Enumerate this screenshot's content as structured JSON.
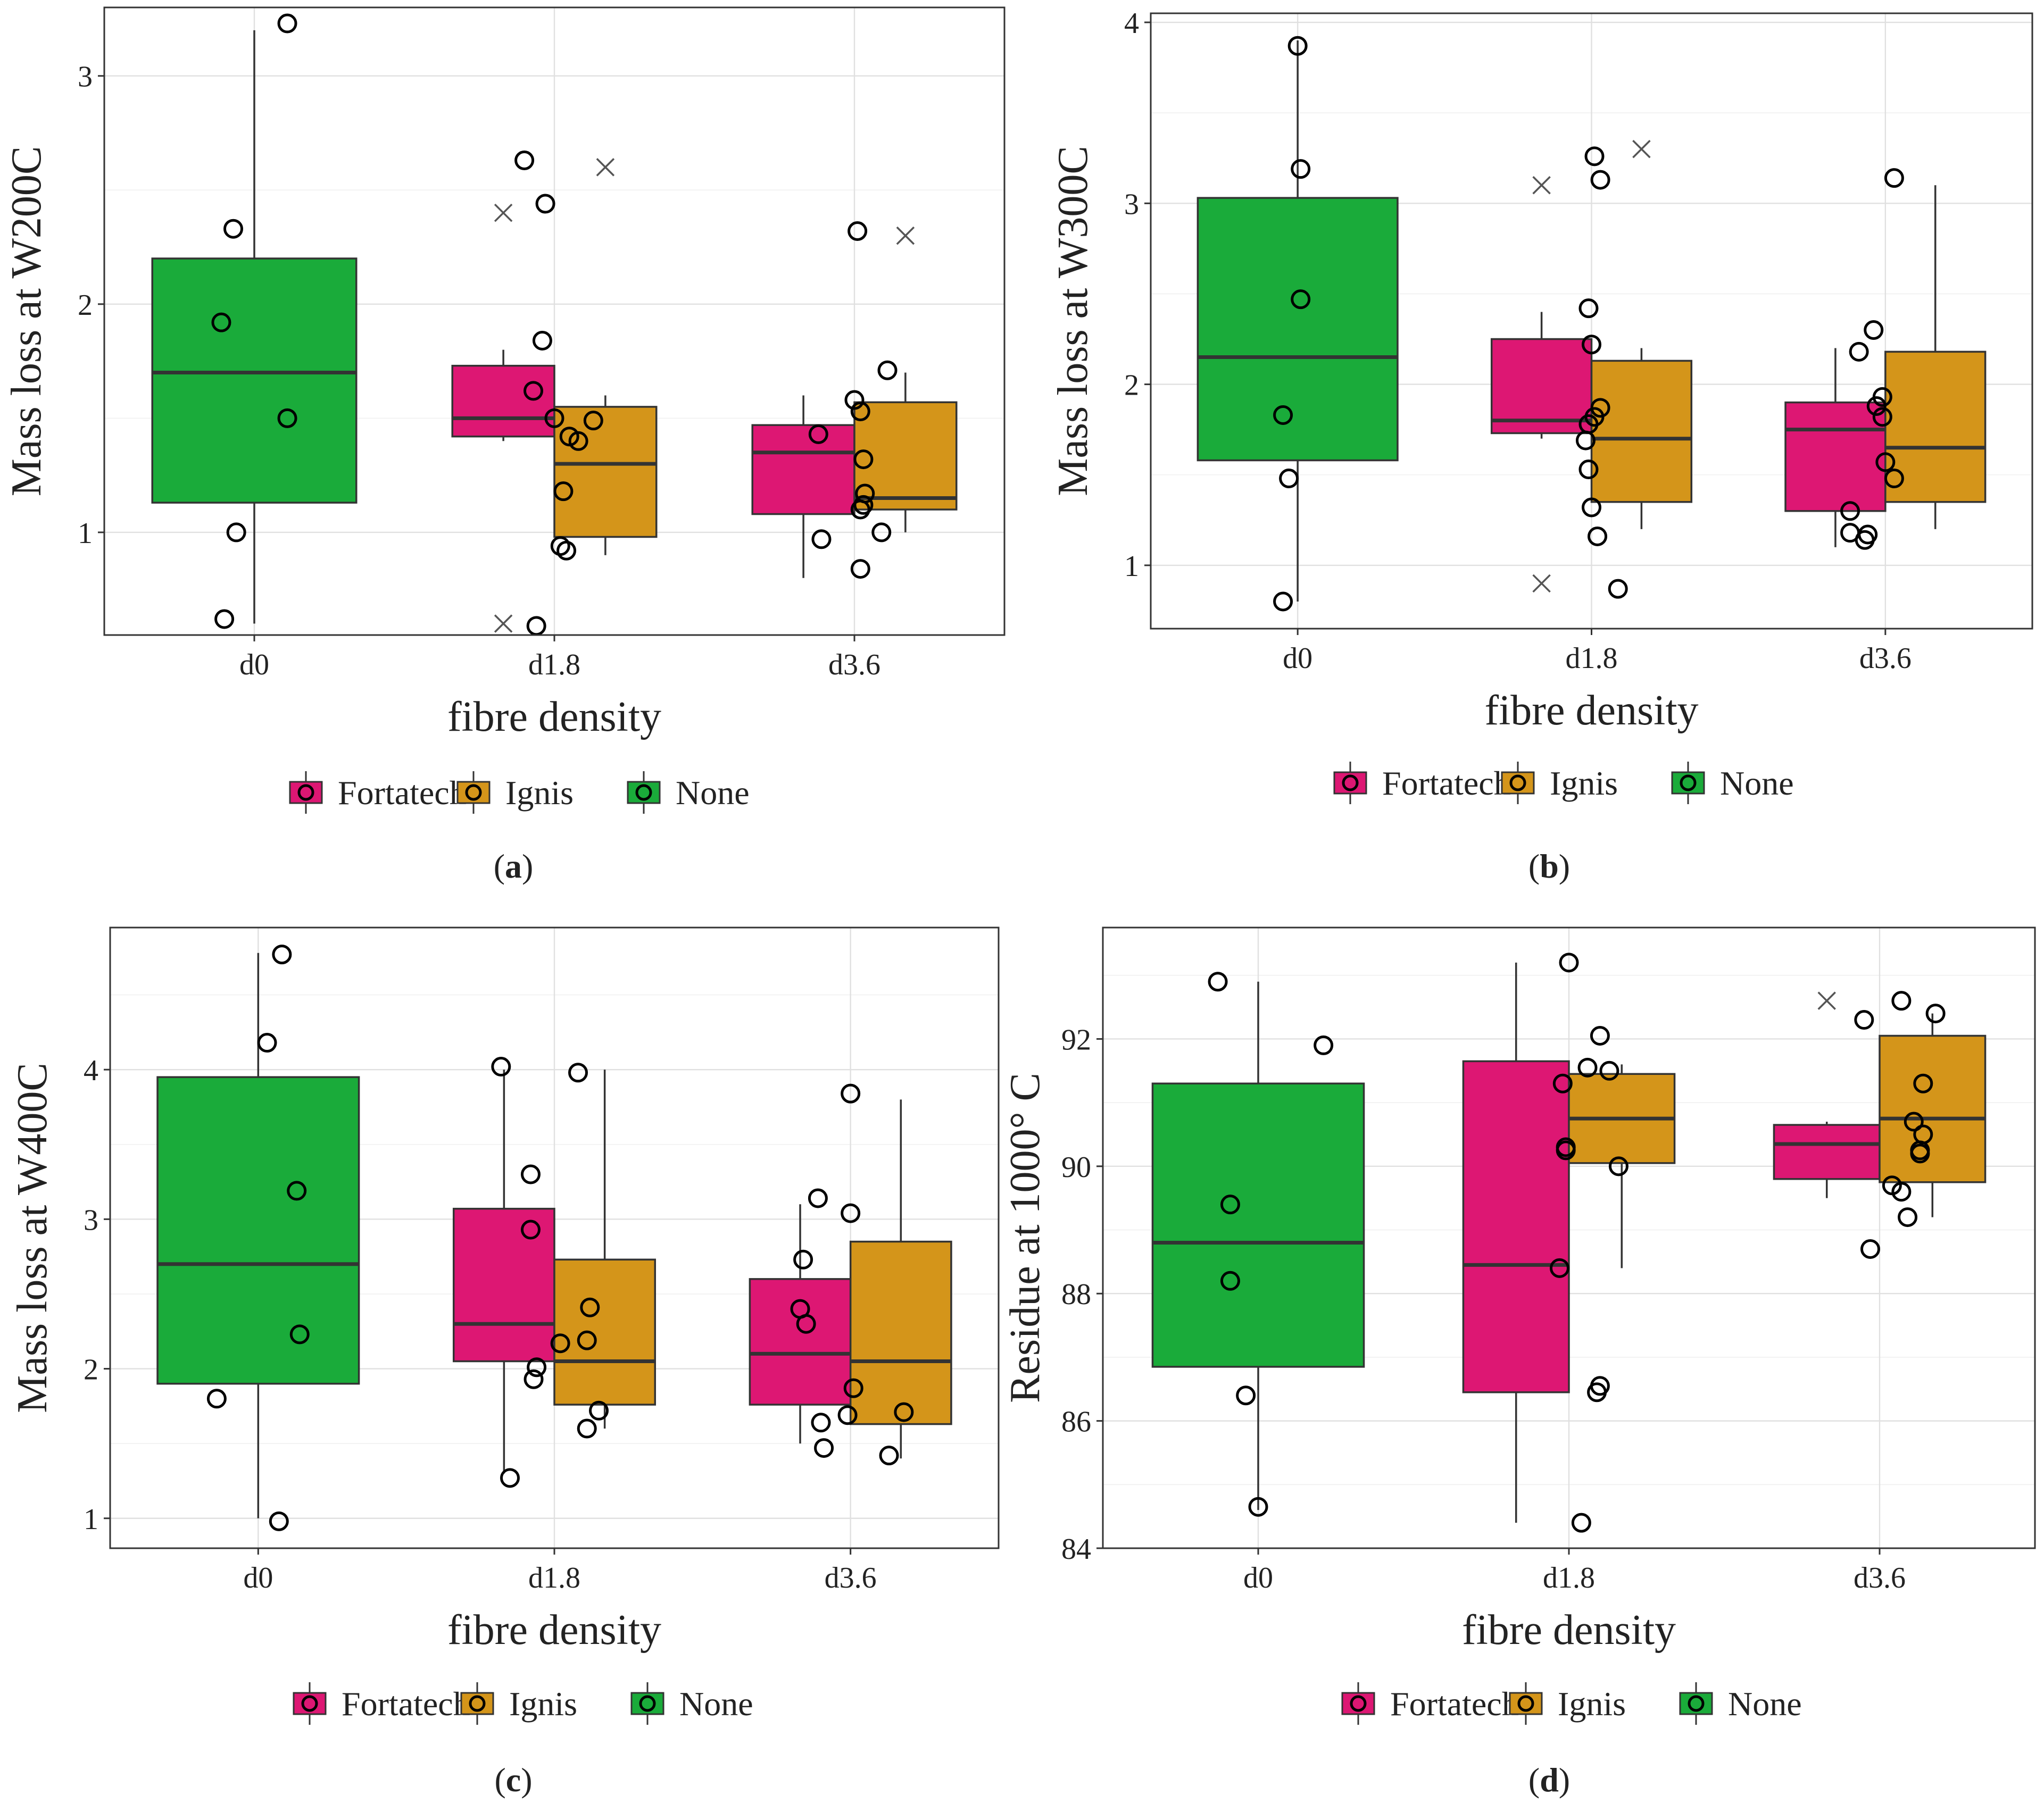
{
  "colors": {
    "Fortatech": "#dd1773",
    "Ignis": "#d4951a",
    "None": "#1aab3a"
  },
  "legend": [
    "Fortatech",
    "Ignis",
    "None"
  ],
  "chart_data": [
    {
      "type": "box",
      "panel": "(a)",
      "panel_letter": "a",
      "ylabel": "Mass loss at W200C",
      "xlabel": "fibre density",
      "categories": [
        "d0",
        "d1.8",
        "d3.6"
      ],
      "ylim": [
        0.55,
        3.3
      ],
      "yticks": [
        1,
        2,
        3
      ],
      "yticks_label": [
        "1",
        "2",
        "3"
      ],
      "boxes": [
        {
          "category": "d0",
          "group": "None",
          "pos": 0,
          "q1": 1.13,
          "median": 1.7,
          "q3": 2.2,
          "low": 0.6,
          "high": 3.2
        },
        {
          "category": "d1.8",
          "group": "Fortatech",
          "pos": -1,
          "q1": 1.42,
          "median": 1.5,
          "q3": 1.73,
          "low": 1.4,
          "high": 1.8
        },
        {
          "category": "d1.8",
          "group": "Ignis",
          "pos": 1,
          "q1": 0.98,
          "median": 1.3,
          "q3": 1.55,
          "low": 0.9,
          "high": 1.6
        },
        {
          "category": "d3.6",
          "group": "Fortatech",
          "pos": -1,
          "q1": 1.08,
          "median": 1.35,
          "q3": 1.47,
          "low": 0.8,
          "high": 1.6
        },
        {
          "category": "d3.6",
          "group": "Ignis",
          "pos": 1,
          "q1": 1.1,
          "median": 1.15,
          "q3": 1.57,
          "low": 1.0,
          "high": 1.7
        }
      ],
      "points": [
        {
          "category": "d0",
          "offset": -0.1,
          "y": 0.62
        },
        {
          "category": "d0",
          "offset": -0.11,
          "y": 1.92
        },
        {
          "category": "d0",
          "offset": -0.07,
          "y": 2.33
        },
        {
          "category": "d0",
          "offset": -0.06,
          "y": 1.0
        },
        {
          "category": "d0",
          "offset": 0.11,
          "y": 1.5
        },
        {
          "category": "d0",
          "offset": 0.11,
          "y": 3.23
        },
        {
          "category": "d1.8",
          "offset": -0.1,
          "y": 2.63
        },
        {
          "category": "d1.8",
          "offset": -0.07,
          "y": 1.62
        },
        {
          "category": "d1.8",
          "offset": -0.04,
          "y": 1.84
        },
        {
          "category": "d1.8",
          "offset": -0.03,
          "y": 2.44
        },
        {
          "category": "d1.8",
          "offset": 0.0,
          "y": 1.5
        },
        {
          "category": "d1.8",
          "offset": 0.02,
          "y": 0.94
        },
        {
          "category": "d1.8",
          "offset": 0.03,
          "y": 1.18
        },
        {
          "category": "d1.8",
          "offset": 0.04,
          "y": 0.92
        },
        {
          "category": "d1.8",
          "offset": 0.05,
          "y": 1.42
        },
        {
          "category": "d1.8",
          "offset": 0.08,
          "y": 1.4
        },
        {
          "category": "d1.8",
          "offset": 0.13,
          "y": 1.49
        },
        {
          "category": "d1.8",
          "offset": -0.06,
          "y": 0.59
        },
        {
          "category": "d3.6",
          "offset": -0.12,
          "y": 1.43
        },
        {
          "category": "d3.6",
          "offset": -0.11,
          "y": 0.97
        },
        {
          "category": "d3.6",
          "offset": 0.0,
          "y": 1.58
        },
        {
          "category": "d3.6",
          "offset": 0.01,
          "y": 2.32
        },
        {
          "category": "d3.6",
          "offset": 0.02,
          "y": 1.53
        },
        {
          "category": "d3.6",
          "offset": 0.02,
          "y": 0.84
        },
        {
          "category": "d3.6",
          "offset": 0.02,
          "y": 1.1
        },
        {
          "category": "d3.6",
          "offset": 0.03,
          "y": 1.32
        },
        {
          "category": "d3.6",
          "offset": 0.035,
          "y": 1.17
        },
        {
          "category": "d3.6",
          "offset": 0.03,
          "y": 1.12
        },
        {
          "category": "d3.6",
          "offset": 0.09,
          "y": 1.0
        },
        {
          "category": "d3.6",
          "offset": 0.11,
          "y": 1.71
        }
      ],
      "outliers": [
        {
          "category": "d1.8",
          "pos": -1,
          "y": 2.4
        },
        {
          "category": "d1.8",
          "pos": -1,
          "y": 0.6
        },
        {
          "category": "d1.8",
          "pos": 1,
          "y": 2.6
        },
        {
          "category": "d3.6",
          "pos": 1,
          "y": 2.3
        }
      ]
    },
    {
      "type": "box",
      "panel": "(b)",
      "panel_letter": "b",
      "ylabel": "Mass loss at W300C",
      "xlabel": "fibre density",
      "categories": [
        "d0",
        "d1.8",
        "d3.6"
      ],
      "ylim": [
        0.65,
        4.05
      ],
      "yticks": [
        1,
        2,
        3,
        4
      ],
      "yticks_label": [
        "1",
        "2",
        "3",
        "4"
      ],
      "boxes": [
        {
          "category": "d0",
          "group": "None",
          "pos": 0,
          "q1": 1.58,
          "median": 2.15,
          "q3": 3.03,
          "low": 0.8,
          "high": 3.9
        },
        {
          "category": "d1.8",
          "group": "Fortatech",
          "pos": -1,
          "q1": 1.73,
          "median": 1.8,
          "q3": 2.25,
          "low": 1.7,
          "high": 2.4
        },
        {
          "category": "d1.8",
          "group": "Ignis",
          "pos": 1,
          "q1": 1.35,
          "median": 1.7,
          "q3": 2.13,
          "low": 1.2,
          "high": 2.2
        },
        {
          "category": "d3.6",
          "group": "Fortatech",
          "pos": -1,
          "q1": 1.3,
          "median": 1.75,
          "q3": 1.9,
          "low": 1.1,
          "high": 2.2
        },
        {
          "category": "d3.6",
          "group": "Ignis",
          "pos": 1,
          "q1": 1.35,
          "median": 1.65,
          "q3": 2.18,
          "low": 1.2,
          "high": 3.1
        }
      ],
      "points": [
        {
          "category": "d0",
          "offset": -0.05,
          "y": 0.8
        },
        {
          "category": "d0",
          "offset": -0.05,
          "y": 1.83
        },
        {
          "category": "d0",
          "offset": -0.03,
          "y": 1.48
        },
        {
          "category": "d0",
          "offset": 0.0,
          "y": 3.87
        },
        {
          "category": "d0",
          "offset": 0.01,
          "y": 3.19
        },
        {
          "category": "d0",
          "offset": 0.01,
          "y": 2.47
        },
        {
          "category": "d1.8",
          "offset": -0.02,
          "y": 1.69
        },
        {
          "category": "d1.8",
          "offset": -0.01,
          "y": 1.78
        },
        {
          "category": "d1.8",
          "offset": -0.01,
          "y": 1.53
        },
        {
          "category": "d1.8",
          "offset": -0.01,
          "y": 2.42
        },
        {
          "category": "d1.8",
          "offset": 0.0,
          "y": 2.22
        },
        {
          "category": "d1.8",
          "offset": 0.0,
          "y": 1.32
        },
        {
          "category": "d1.8",
          "offset": 0.01,
          "y": 1.82
        },
        {
          "category": "d1.8",
          "offset": 0.01,
          "y": 3.26
        },
        {
          "category": "d1.8",
          "offset": 0.02,
          "y": 1.16
        },
        {
          "category": "d1.8",
          "offset": 0.03,
          "y": 1.87
        },
        {
          "category": "d1.8",
          "offset": 0.03,
          "y": 3.13
        },
        {
          "category": "d1.8",
          "offset": 0.09,
          "y": 0.87
        },
        {
          "category": "d3.6",
          "offset": -0.12,
          "y": 1.3
        },
        {
          "category": "d3.6",
          "offset": -0.12,
          "y": 1.18
        },
        {
          "category": "d3.6",
          "offset": -0.09,
          "y": 2.18
        },
        {
          "category": "d3.6",
          "offset": -0.07,
          "y": 1.14
        },
        {
          "category": "d3.6",
          "offset": -0.06,
          "y": 1.17
        },
        {
          "category": "d3.6",
          "offset": -0.04,
          "y": 2.3
        },
        {
          "category": "d3.6",
          "offset": -0.03,
          "y": 1.88
        },
        {
          "category": "d3.6",
          "offset": -0.01,
          "y": 1.93
        },
        {
          "category": "d3.6",
          "offset": -0.01,
          "y": 1.82
        },
        {
          "category": "d3.6",
          "offset": 0.0,
          "y": 1.57
        },
        {
          "category": "d3.6",
          "offset": 0.03,
          "y": 1.48
        },
        {
          "category": "d3.6",
          "offset": 0.03,
          "y": 3.14
        }
      ],
      "outliers": [
        {
          "category": "d1.8",
          "pos": -1,
          "y": 3.1
        },
        {
          "category": "d1.8",
          "pos": -1,
          "y": 0.9
        },
        {
          "category": "d1.8",
          "pos": 1,
          "y": 3.3
        }
      ]
    },
    {
      "type": "box",
      "panel": "(c)",
      "panel_letter": "c",
      "ylabel": "Mass loss at W400C",
      "xlabel": "fibre density",
      "categories": [
        "d0",
        "d1.8",
        "d3.6"
      ],
      "ylim": [
        0.8,
        4.95
      ],
      "yticks": [
        1,
        2,
        3,
        4
      ],
      "yticks_label": [
        "1",
        "2",
        "3",
        "4"
      ],
      "boxes": [
        {
          "category": "d0",
          "group": "None",
          "pos": 0,
          "q1": 1.9,
          "median": 2.7,
          "q3": 3.95,
          "low": 1.0,
          "high": 4.78
        },
        {
          "category": "d1.8",
          "group": "Fortatech",
          "pos": -1,
          "q1": 2.05,
          "median": 2.3,
          "q3": 3.07,
          "low": 1.3,
          "high": 4.0
        },
        {
          "category": "d1.8",
          "group": "Ignis",
          "pos": 1,
          "q1": 1.76,
          "median": 2.05,
          "q3": 2.73,
          "low": 1.6,
          "high": 4.0
        },
        {
          "category": "d3.6",
          "group": "Fortatech",
          "pos": -1,
          "q1": 1.76,
          "median": 2.1,
          "q3": 2.6,
          "low": 1.5,
          "high": 3.1
        },
        {
          "category": "d3.6",
          "group": "Ignis",
          "pos": 1,
          "q1": 1.63,
          "median": 2.05,
          "q3": 2.85,
          "low": 1.4,
          "high": 3.8
        }
      ],
      "points": [
        {
          "category": "d0",
          "offset": -0.14,
          "y": 1.8
        },
        {
          "category": "d0",
          "offset": 0.03,
          "y": 4.18
        },
        {
          "category": "d0",
          "offset": 0.07,
          "y": 0.98
        },
        {
          "category": "d0",
          "offset": 0.08,
          "y": 4.77
        },
        {
          "category": "d0",
          "offset": 0.13,
          "y": 3.19
        },
        {
          "category": "d0",
          "offset": 0.14,
          "y": 2.23
        },
        {
          "category": "d1.8",
          "offset": -0.15,
          "y": 1.27
        },
        {
          "category": "d1.8",
          "offset": -0.18,
          "y": 4.02
        },
        {
          "category": "d1.8",
          "offset": -0.08,
          "y": 3.3
        },
        {
          "category": "d1.8",
          "offset": -0.08,
          "y": 2.93
        },
        {
          "category": "d1.8",
          "offset": -0.07,
          "y": 1.93
        },
        {
          "category": "d1.8",
          "offset": -0.06,
          "y": 2.01
        },
        {
          "category": "d1.8",
          "offset": 0.02,
          "y": 2.17
        },
        {
          "category": "d1.8",
          "offset": 0.08,
          "y": 3.98
        },
        {
          "category": "d1.8",
          "offset": 0.11,
          "y": 1.6
        },
        {
          "category": "d1.8",
          "offset": 0.11,
          "y": 2.19
        },
        {
          "category": "d1.8",
          "offset": 0.12,
          "y": 2.41
        },
        {
          "category": "d1.8",
          "offset": 0.15,
          "y": 1.72
        },
        {
          "category": "d3.6",
          "offset": -0.17,
          "y": 2.4
        },
        {
          "category": "d3.6",
          "offset": -0.16,
          "y": 2.73
        },
        {
          "category": "d3.6",
          "offset": -0.15,
          "y": 2.3
        },
        {
          "category": "d3.6",
          "offset": -0.11,
          "y": 3.14
        },
        {
          "category": "d3.6",
          "offset": -0.1,
          "y": 1.64
        },
        {
          "category": "d3.6",
          "offset": -0.09,
          "y": 1.47
        },
        {
          "category": "d3.6",
          "offset": -0.01,
          "y": 1.69
        },
        {
          "category": "d3.6",
          "offset": 0.0,
          "y": 3.04
        },
        {
          "category": "d3.6",
          "offset": 0.0,
          "y": 3.84
        },
        {
          "category": "d3.6",
          "offset": 0.01,
          "y": 1.87
        },
        {
          "category": "d3.6",
          "offset": 0.13,
          "y": 1.42
        },
        {
          "category": "d3.6",
          "offset": 0.18,
          "y": 1.71
        }
      ],
      "outliers": []
    },
    {
      "type": "box",
      "panel": "(d)",
      "panel_letter": "d",
      "ylabel": "Residue  at  1000° C",
      "xlabel": "fibre density",
      "categories": [
        "d0",
        "d1.8",
        "d3.6"
      ],
      "ylim": [
        84,
        93.75
      ],
      "yticks": [
        84,
        86,
        88,
        90,
        92
      ],
      "yticks_label": [
        "84",
        "86",
        "88",
        "90",
        "92"
      ],
      "boxes": [
        {
          "category": "d0",
          "group": "None",
          "pos": 0,
          "q1": 86.85,
          "median": 88.8,
          "q3": 91.3,
          "low": 84.6,
          "high": 92.9
        },
        {
          "category": "d1.8",
          "group": "Fortatech",
          "pos": -1,
          "q1": 86.45,
          "median": 88.45,
          "q3": 91.65,
          "low": 84.4,
          "high": 93.2
        },
        {
          "category": "d1.8",
          "group": "Ignis",
          "pos": 1,
          "q1": 90.05,
          "median": 90.75,
          "q3": 91.45,
          "low": 88.4,
          "high": 91.6
        },
        {
          "category": "d3.6",
          "group": "Fortatech",
          "pos": -1,
          "q1": 89.8,
          "median": 90.35,
          "q3": 90.65,
          "low": 89.5,
          "high": 90.7
        },
        {
          "category": "d3.6",
          "group": "Ignis",
          "pos": 1,
          "q1": 89.75,
          "median": 90.75,
          "q3": 92.05,
          "low": 89.2,
          "high": 92.4
        }
      ],
      "points": [
        {
          "category": "d0",
          "offset": -0.13,
          "y": 92.9
        },
        {
          "category": "d0",
          "offset": -0.09,
          "y": 89.4
        },
        {
          "category": "d0",
          "offset": -0.09,
          "y": 88.2
        },
        {
          "category": "d0",
          "offset": -0.04,
          "y": 86.4
        },
        {
          "category": "d0",
          "offset": 0.0,
          "y": 84.65
        },
        {
          "category": "d0",
          "offset": 0.21,
          "y": 91.9
        },
        {
          "category": "d1.8",
          "offset": -0.03,
          "y": 88.4
        },
        {
          "category": "d1.8",
          "offset": -0.02,
          "y": 91.3
        },
        {
          "category": "d1.8",
          "offset": -0.01,
          "y": 90.25
        },
        {
          "category": "d1.8",
          "offset": -0.01,
          "y": 90.3
        },
        {
          "category": "d1.8",
          "offset": 0.0,
          "y": 93.2
        },
        {
          "category": "d1.8",
          "offset": 0.04,
          "y": 84.4
        },
        {
          "category": "d1.8",
          "offset": 0.06,
          "y": 91.55
        },
        {
          "category": "d1.8",
          "offset": 0.09,
          "y": 86.45
        },
        {
          "category": "d1.8",
          "offset": 0.1,
          "y": 86.55
        },
        {
          "category": "d1.8",
          "offset": 0.1,
          "y": 92.05
        },
        {
          "category": "d1.8",
          "offset": 0.13,
          "y": 91.5
        },
        {
          "category": "d1.8",
          "offset": 0.16,
          "y": 90.0
        },
        {
          "category": "d3.6",
          "offset": -0.05,
          "y": 92.3
        },
        {
          "category": "d3.6",
          "offset": -0.03,
          "y": 88.7
        },
        {
          "category": "d3.6",
          "offset": 0.04,
          "y": 89.7
        },
        {
          "category": "d3.6",
          "offset": 0.07,
          "y": 92.6
        },
        {
          "category": "d3.6",
          "offset": 0.07,
          "y": 89.6
        },
        {
          "category": "d3.6",
          "offset": 0.09,
          "y": 89.2
        },
        {
          "category": "d3.6",
          "offset": 0.11,
          "y": 90.7
        },
        {
          "category": "d3.6",
          "offset": 0.13,
          "y": 90.2
        },
        {
          "category": "d3.6",
          "offset": 0.13,
          "y": 90.25
        },
        {
          "category": "d3.6",
          "offset": 0.14,
          "y": 90.5
        },
        {
          "category": "d3.6",
          "offset": 0.14,
          "y": 91.3
        },
        {
          "category": "d3.6",
          "offset": 0.18,
          "y": 92.4
        }
      ],
      "outliers": [
        {
          "category": "d3.6",
          "pos": -1,
          "y": 92.6
        }
      ]
    }
  ]
}
